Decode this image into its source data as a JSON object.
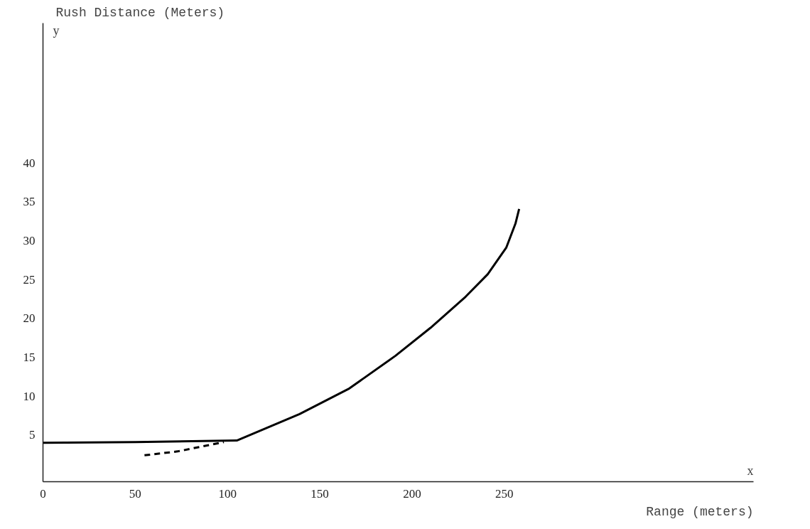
{
  "chart_data": {
    "type": "line",
    "xlabel": "Range (meters)",
    "ylabel": "Rush Distance (Meters)",
    "annotations": [
      "y",
      "x"
    ],
    "xlim": [
      0,
      385
    ],
    "ylim": [
      -1,
      58
    ],
    "xticks": [
      0,
      50,
      100,
      150,
      200,
      250
    ],
    "yticks": [
      5,
      10,
      15,
      20,
      25,
      30,
      35,
      40
    ],
    "grid": false,
    "marker": "none",
    "series": [
      {
        "color": "#000000",
        "line_style": "solid",
        "x": [
          0,
          50,
          105,
          139,
          166,
          191,
          210,
          229,
          241,
          251,
          256,
          258
        ],
        "values": [
          4.0,
          4.1,
          4.3,
          7.7,
          11.0,
          15.2,
          18.8,
          22.8,
          25.7,
          29.1,
          32.2,
          34.1
        ]
      },
      {
        "color": "#000000",
        "line_style": "dashed",
        "x": [
          55,
          73,
          98
        ],
        "values": [
          2.4,
          2.9,
          4.1
        ]
      }
    ]
  }
}
